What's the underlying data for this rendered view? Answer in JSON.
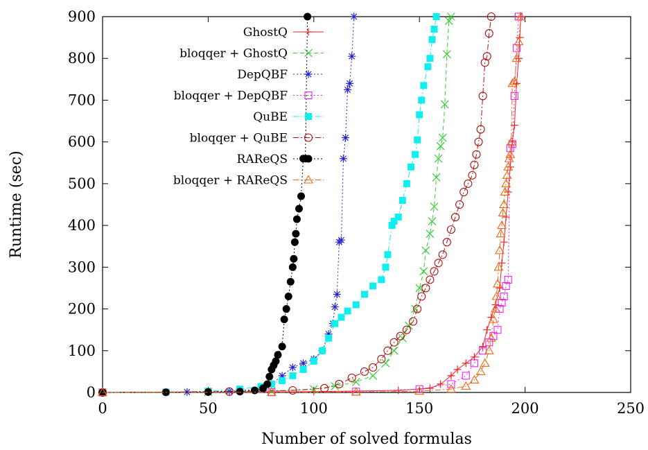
{
  "chart_data": {
    "type": "scatter",
    "xlabel": "Number of solved formulas",
    "ylabel": "Runtime (sec)",
    "xlim": [
      0,
      250
    ],
    "ylim": [
      0,
      900
    ],
    "x_ticks": [
      "0",
      "50",
      "100",
      "150",
      "200",
      "250"
    ],
    "y_ticks": [
      "0",
      "100",
      "200",
      "300",
      "400",
      "500",
      "600",
      "700",
      "800",
      "900"
    ],
    "grid": false,
    "legend_position": "top-left",
    "series": [
      {
        "name": "GhostQ",
        "color": "#ee2222",
        "marker": "plus",
        "dash": "solid",
        "points": [
          [
            0,
            0
          ],
          [
            50,
            0.5
          ],
          [
            100,
            2
          ],
          [
            140,
            5
          ],
          [
            155,
            10
          ],
          [
            160,
            20
          ],
          [
            165,
            40
          ],
          [
            168,
            55
          ],
          [
            172,
            70
          ],
          [
            176,
            85
          ],
          [
            180,
            110
          ],
          [
            182,
            150
          ],
          [
            184,
            180
          ],
          [
            186,
            210
          ],
          [
            188,
            250
          ],
          [
            189,
            310
          ],
          [
            190,
            360
          ],
          [
            191,
            420
          ],
          [
            192,
            480
          ],
          [
            193,
            540
          ],
          [
            194,
            600
          ],
          [
            195,
            640
          ],
          [
            196,
            740
          ],
          [
            197,
            800
          ],
          [
            197.5,
            850
          ],
          [
            198,
            900
          ]
        ]
      },
      {
        "name": "bloqqer + GhostQ",
        "color": "#33cc33",
        "marker": "x",
        "dash": "dash",
        "points": [
          [
            0,
            0
          ],
          [
            50,
            1
          ],
          [
            80,
            3
          ],
          [
            100,
            8
          ],
          [
            110,
            15
          ],
          [
            120,
            25
          ],
          [
            128,
            40
          ],
          [
            134,
            70
          ],
          [
            138,
            100
          ],
          [
            142,
            130
          ],
          [
            145,
            160
          ],
          [
            148,
            200
          ],
          [
            150,
            250
          ],
          [
            152,
            290
          ],
          [
            153,
            340
          ],
          [
            155,
            380
          ],
          [
            156,
            410
          ],
          [
            157,
            445
          ],
          [
            158,
            515
          ],
          [
            159,
            560
          ],
          [
            160,
            590
          ],
          [
            161,
            610
          ],
          [
            162,
            690
          ],
          [
            163,
            810
          ],
          [
            164,
            890
          ],
          [
            165,
            900
          ]
        ]
      },
      {
        "name": "DepQBF",
        "color": "#2222cc",
        "marker": "asterisk",
        "dash": "dot",
        "points": [
          [
            0,
            0
          ],
          [
            40,
            1
          ],
          [
            60,
            3
          ],
          [
            75,
            8
          ],
          [
            80,
            20
          ],
          [
            85,
            40
          ],
          [
            90,
            60
          ],
          [
            95,
            70
          ],
          [
            100,
            80
          ],
          [
            104,
            100
          ],
          [
            107,
            140
          ],
          [
            109,
            165
          ],
          [
            110,
            205
          ],
          [
            111,
            235
          ],
          [
            112,
            360
          ],
          [
            113,
            365
          ],
          [
            114,
            560
          ],
          [
            115,
            610
          ],
          [
            116,
            725
          ],
          [
            117,
            740
          ],
          [
            118,
            805
          ],
          [
            119,
            900
          ]
        ]
      },
      {
        "name": "bloqqer + DepQBF",
        "color": "#ee22ee",
        "marker": "square-open",
        "dash": "dot",
        "points": [
          [
            0,
            0
          ],
          [
            80,
            0.5
          ],
          [
            120,
            2
          ],
          [
            150,
            8
          ],
          [
            165,
            20
          ],
          [
            172,
            40
          ],
          [
            176,
            70
          ],
          [
            180,
            100
          ],
          [
            183,
            120
          ],
          [
            185,
            135
          ],
          [
            187,
            150
          ],
          [
            188,
            200
          ],
          [
            189,
            215
          ],
          [
            190,
            230
          ],
          [
            191,
            255
          ],
          [
            192,
            270
          ],
          [
            193,
            585
          ],
          [
            194,
            595
          ],
          [
            195,
            710
          ],
          [
            196,
            825
          ],
          [
            197,
            900
          ]
        ]
      },
      {
        "name": "QuBE",
        "color": "#11eeee",
        "marker": "square-filled",
        "dash": "dashdot",
        "points": [
          [
            0,
            0
          ],
          [
            30,
            1
          ],
          [
            50,
            3
          ],
          [
            65,
            8
          ],
          [
            75,
            14
          ],
          [
            80,
            20
          ],
          [
            85,
            28
          ],
          [
            90,
            40
          ],
          [
            95,
            55
          ],
          [
            100,
            75
          ],
          [
            104,
            100
          ],
          [
            107,
            130
          ],
          [
            110,
            165
          ],
          [
            113,
            180
          ],
          [
            116,
            195
          ],
          [
            120,
            210
          ],
          [
            124,
            235
          ],
          [
            128,
            255
          ],
          [
            132,
            270
          ],
          [
            134,
            300
          ],
          [
            135,
            330
          ],
          [
            137,
            400
          ],
          [
            138,
            410
          ],
          [
            140,
            420
          ],
          [
            142,
            460
          ],
          [
            144,
            500
          ],
          [
            146,
            540
          ],
          [
            148,
            570
          ],
          [
            149,
            605
          ],
          [
            150,
            665
          ],
          [
            151,
            700
          ],
          [
            152,
            735
          ],
          [
            154,
            780
          ],
          [
            155,
            800
          ],
          [
            156,
            845
          ],
          [
            157,
            870
          ],
          [
            158,
            900
          ]
        ]
      },
      {
        "name": "bloqqer + QuBE",
        "color": "#aa1111",
        "marker": "circle-open",
        "dash": "dashdot",
        "points": [
          [
            0,
            0
          ],
          [
            60,
            2
          ],
          [
            90,
            5
          ],
          [
            105,
            10
          ],
          [
            112,
            20
          ],
          [
            118,
            35
          ],
          [
            124,
            50
          ],
          [
            128,
            60
          ],
          [
            132,
            80
          ],
          [
            135,
            100
          ],
          [
            138,
            120
          ],
          [
            141,
            135
          ],
          [
            144,
            150
          ],
          [
            147,
            170
          ],
          [
            149,
            200
          ],
          [
            151,
            230
          ],
          [
            153,
            250
          ],
          [
            155,
            270
          ],
          [
            157,
            290
          ],
          [
            159,
            310
          ],
          [
            161,
            330
          ],
          [
            163,
            360
          ],
          [
            165,
            390
          ],
          [
            167,
            420
          ],
          [
            169,
            450
          ],
          [
            171,
            480
          ],
          [
            173,
            500
          ],
          [
            175,
            520
          ],
          [
            176,
            545
          ],
          [
            177,
            570
          ],
          [
            178,
            600
          ],
          [
            179,
            630
          ],
          [
            180,
            710
          ],
          [
            181,
            790
          ],
          [
            182,
            805
          ],
          [
            183,
            860
          ],
          [
            184,
            900
          ]
        ]
      },
      {
        "name": "RAReQS",
        "color": "#000000",
        "marker": "circle-filled",
        "dash": "dot",
        "points": [
          [
            0,
            0
          ],
          [
            30,
            0.5
          ],
          [
            50,
            1
          ],
          [
            65,
            2
          ],
          [
            72,
            5
          ],
          [
            76,
            10
          ],
          [
            78,
            20
          ],
          [
            79,
            38
          ],
          [
            80,
            55
          ],
          [
            81,
            65
          ],
          [
            82,
            75
          ],
          [
            83,
            90
          ],
          [
            85,
            110
          ],
          [
            86,
            175
          ],
          [
            87,
            200
          ],
          [
            88,
            230
          ],
          [
            89,
            265
          ],
          [
            90,
            300
          ],
          [
            90.5,
            320
          ],
          [
            91,
            360
          ],
          [
            91.5,
            380
          ],
          [
            92,
            415
          ],
          [
            93,
            440
          ],
          [
            94,
            470
          ],
          [
            95,
            560
          ],
          [
            96,
            560
          ],
          [
            97,
            900
          ]
        ]
      },
      {
        "name": "bloqqer + RAReQS",
        "color": "#ee6611",
        "marker": "triangle-open",
        "dash": "dashdot",
        "points": [
          [
            0,
            0
          ],
          [
            80,
            0.5
          ],
          [
            120,
            1
          ],
          [
            150,
            3
          ],
          [
            165,
            8
          ],
          [
            172,
            15
          ],
          [
            176,
            30
          ],
          [
            179,
            50
          ],
          [
            181,
            70
          ],
          [
            183,
            100
          ],
          [
            184,
            130
          ],
          [
            185,
            175
          ],
          [
            186,
            200
          ],
          [
            186.5,
            230
          ],
          [
            187,
            260
          ],
          [
            187.5,
            300
          ],
          [
            188,
            340
          ],
          [
            188.5,
            380
          ],
          [
            189,
            400
          ],
          [
            189.5,
            430
          ],
          [
            190,
            450
          ],
          [
            190.5,
            480
          ],
          [
            191,
            500
          ],
          [
            191.5,
            520
          ],
          [
            192,
            540
          ],
          [
            192.5,
            560
          ],
          [
            193,
            570
          ],
          [
            193.5,
            600
          ],
          [
            194,
            740
          ],
          [
            195,
            745
          ],
          [
            196,
            800
          ],
          [
            197,
            840
          ],
          [
            198,
            900
          ]
        ]
      }
    ]
  }
}
